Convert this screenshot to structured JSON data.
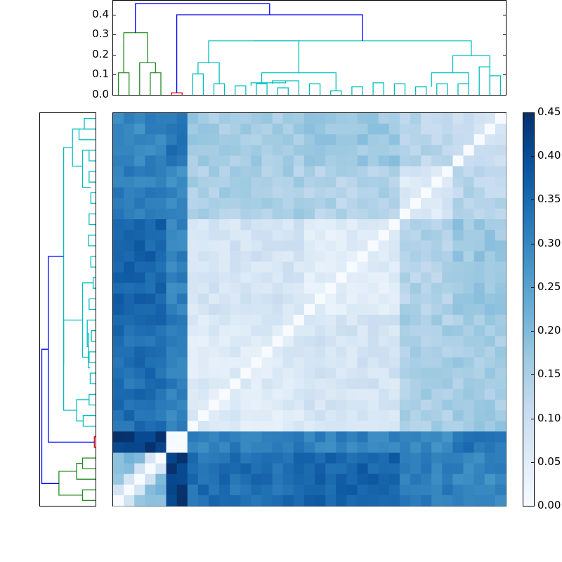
{
  "chart_data": {
    "type": "heatmap",
    "title": "",
    "description": "Clustered distance matrix heatmap with top and left dendrograms and a colorbar",
    "n": 37,
    "colormap": "Blues",
    "vmin": 0.0,
    "vmax": 0.45,
    "colorbar_ticks": [
      "0.00",
      "0.05",
      "0.10",
      "0.15",
      "0.20",
      "0.25",
      "0.30",
      "0.35",
      "0.40",
      "0.45"
    ],
    "dendrogram_yticks": [
      "0.0",
      "0.1",
      "0.2",
      "0.3",
      "0.4"
    ],
    "dendrogram_ylim": [
      0,
      0.47
    ],
    "cluster_colors": {
      "green": "#008000",
      "red": "#ff0000",
      "cyan": "#00bfbf",
      "root": "#0000ff"
    },
    "column_groups": [
      {
        "name": "green",
        "start": 0,
        "end": 4
      },
      {
        "name": "red",
        "start": 5,
        "end": 6
      },
      {
        "name": "cyan",
        "start": 7,
        "end": 36
      }
    ],
    "top_dendrogram_links": [
      {
        "x": [
          0,
          0,
          1,
          1
        ],
        "h": [
          0,
          0.11,
          0.11,
          0
        ],
        "c": "green"
      },
      {
        "x": [
          3,
          3,
          4,
          4
        ],
        "h": [
          0,
          0.11,
          0.11,
          0
        ],
        "c": "green"
      },
      {
        "x": [
          2,
          2,
          3.5,
          3.5
        ],
        "h": [
          0,
          0.16,
          0.16,
          0.11
        ],
        "c": "green"
      },
      {
        "x": [
          0.5,
          0.5,
          2.75,
          2.75
        ],
        "h": [
          0.11,
          0.31,
          0.31,
          0.16
        ],
        "c": "green"
      },
      {
        "x": [
          5,
          5,
          6,
          6
        ],
        "h": [
          0,
          0.01,
          0.01,
          0
        ],
        "c": "red"
      },
      {
        "x": [
          7,
          7,
          8,
          8
        ],
        "h": [
          0,
          0.105,
          0.105,
          0
        ],
        "c": "cyan"
      },
      {
        "x": [
          9,
          9,
          10,
          10
        ],
        "h": [
          0,
          0.055,
          0.055,
          0
        ],
        "c": "cyan"
      },
      {
        "x": [
          11,
          11,
          12,
          12
        ],
        "h": [
          0,
          0.045,
          0.045,
          0
        ],
        "c": "cyan"
      },
      {
        "x": [
          13,
          13,
          14,
          14
        ],
        "h": [
          0,
          0.055,
          0.055,
          0
        ],
        "c": "cyan"
      },
      {
        "x": [
          15,
          15,
          16,
          16
        ],
        "h": [
          0,
          0.035,
          0.035,
          0
        ],
        "c": "cyan"
      },
      {
        "x": [
          14.5,
          14.5,
          17,
          17
        ],
        "h": [
          0.055,
          0.07,
          0.07,
          0
        ],
        "c": "cyan"
      },
      {
        "x": [
          12.5,
          12.5,
          15.75,
          15.75
        ],
        "h": [
          0.045,
          0.06,
          0.06,
          0.07
        ],
        "c": "cyan"
      },
      {
        "x": [
          7.5,
          7.5,
          9.5,
          9.5
        ],
        "h": [
          0.105,
          0.16,
          0.16,
          0.055
        ],
        "c": "cyan"
      },
      {
        "x": [
          18,
          18,
          19,
          19
        ],
        "h": [
          0,
          0.055,
          0.055,
          0
        ],
        "c": "cyan"
      },
      {
        "x": [
          20,
          20,
          21,
          21
        ],
        "h": [
          0,
          0.02,
          0.02,
          0
        ],
        "c": "cyan"
      },
      {
        "x": [
          22,
          22,
          23,
          23
        ],
        "h": [
          0,
          0.04,
          0.04,
          0
        ],
        "c": "cyan"
      },
      {
        "x": [
          24,
          24,
          25,
          25
        ],
        "h": [
          0,
          0.06,
          0.06,
          0
        ],
        "c": "cyan"
      },
      {
        "x": [
          26,
          26,
          27,
          27
        ],
        "h": [
          0,
          0.055,
          0.055,
          0
        ],
        "c": "cyan"
      },
      {
        "x": [
          28,
          28,
          29,
          29
        ],
        "h": [
          0,
          0.04,
          0.04,
          0
        ],
        "c": "cyan"
      },
      {
        "x": [
          30,
          30,
          31,
          31
        ],
        "h": [
          0,
          0.055,
          0.055,
          0
        ],
        "c": "cyan"
      },
      {
        "x": [
          32,
          32,
          33,
          33
        ],
        "h": [
          0,
          0.055,
          0.055,
          0
        ],
        "c": "cyan"
      },
      {
        "x": [
          34,
          34,
          35,
          35
        ],
        "h": [
          0,
          0.14,
          0.14,
          0
        ],
        "c": "cyan"
      },
      {
        "x": [
          35,
          35,
          36,
          36
        ],
        "h": [
          0,
          0.095,
          0.095,
          0
        ],
        "c": "cyan"
      },
      {
        "x": [
          13.5,
          13.5,
          20.5,
          20.5
        ],
        "h": [
          0.06,
          0.11,
          0.11,
          0.02
        ],
        "c": "cyan"
      },
      {
        "x": [
          8.5,
          8.5,
          17,
          17
        ],
        "h": [
          0.16,
          0.27,
          0.27,
          0.11
        ],
        "c": "cyan"
      },
      {
        "x": [
          29.5,
          29.5,
          33,
          33
        ],
        "h": [
          0.04,
          0.11,
          0.11,
          0.055
        ],
        "c": "cyan"
      },
      {
        "x": [
          31.5,
          31.5,
          35,
          35
        ],
        "h": [
          0.11,
          0.195,
          0.195,
          0.14
        ],
        "c": "cyan"
      },
      {
        "x": [
          12.75,
          12.75,
          33.25,
          33.25
        ],
        "h": [
          0.27,
          0.27,
          0.27,
          0.195
        ],
        "c": "cyan"
      },
      {
        "x": [
          5.5,
          5.5,
          23,
          23
        ],
        "h": [
          0.01,
          0.4,
          0.4,
          0.27
        ],
        "c": "root"
      },
      {
        "x": [
          1.6,
          1.6,
          14.25,
          14.25
        ],
        "h": [
          0.31,
          0.455,
          0.455,
          0.4
        ],
        "c": "root"
      }
    ],
    "matrix_description": "Rows ordered top-to-bottom as reversed column order (diagonal runs top-right to bottom-left). Values are pairwise distances 0-0.45.",
    "matrix": []
  }
}
